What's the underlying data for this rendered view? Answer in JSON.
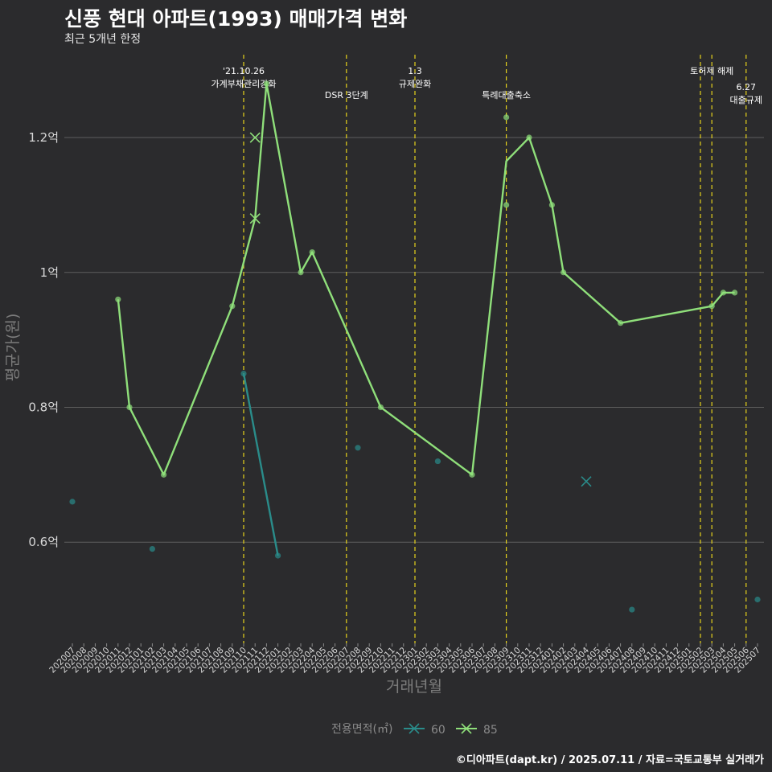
{
  "title": "신풍 현대 아파트(1993) 매매가격 변화",
  "subtitle": "최근 5개년 한정",
  "credit": "©디아파트(dapt.kr) / 2025.07.11 / 자료=국토교통부 실거래가",
  "colors": {
    "s60": "#2a8c8a",
    "s85": "#8fdf7a",
    "event": "#e6d21c",
    "grid": "#5e5e5e"
  },
  "chart_data": {
    "type": "line",
    "title": "신풍 현대 아파트(1993) 매매가격 변화",
    "xlabel": "거래년월",
    "ylabel": "평균가(원)",
    "ylim": [
      0.45,
      1.33
    ],
    "yticks": [
      0.6,
      0.8,
      1.0,
      1.2
    ],
    "ytick_labels": [
      "0.6억",
      "0.8억",
      "1억",
      "1.2억"
    ],
    "categories": [
      "202007",
      "202008",
      "202009",
      "202010",
      "202011",
      "202012",
      "202101",
      "202102",
      "202103",
      "202104",
      "202105",
      "202106",
      "202107",
      "202108",
      "202109",
      "202110",
      "202111",
      "202112",
      "202201",
      "202202",
      "202203",
      "202204",
      "202205",
      "202206",
      "202207",
      "202208",
      "202209",
      "202210",
      "202211",
      "202212",
      "202301",
      "202302",
      "202303",
      "202304",
      "202305",
      "202306",
      "202307",
      "202308",
      "202309",
      "202310",
      "202311",
      "202312",
      "202401",
      "202402",
      "202403",
      "202404",
      "202405",
      "202406",
      "202407",
      "202408",
      "202409",
      "202410",
      "202411",
      "202412",
      "202501",
      "202502",
      "202503",
      "202504",
      "202505",
      "202506",
      "202507"
    ],
    "legend_title": "전용면적(㎡)",
    "series": [
      {
        "name": "60",
        "line": [
          [
            "202110",
            0.85
          ],
          [
            "202201",
            0.58
          ]
        ],
        "points": [
          [
            "202007",
            0.66
          ],
          [
            "202102",
            0.59
          ],
          [
            "202110",
            0.85
          ],
          [
            "202201",
            0.58
          ],
          [
            "202208",
            0.74
          ],
          [
            "202303",
            0.72
          ],
          [
            "202408",
            0.5
          ],
          [
            "202507",
            0.515
          ]
        ],
        "cross": [
          [
            "202404",
            0.69
          ]
        ]
      },
      {
        "name": "85",
        "line": [
          [
            "202011",
            0.96
          ],
          [
            "202012",
            0.8
          ],
          [
            "202103",
            0.7
          ],
          [
            "202109",
            0.95
          ],
          [
            "202111",
            1.08
          ],
          [
            "202112",
            1.28
          ],
          [
            "202203",
            1.0
          ],
          [
            "202204",
            1.03
          ],
          [
            "202210",
            0.8
          ],
          [
            "202306",
            0.7
          ],
          [
            "202309",
            1.165
          ],
          [
            "202311",
            1.2
          ],
          [
            "202401",
            1.1
          ],
          [
            "202402",
            1.0
          ],
          [
            "202407",
            0.925
          ],
          [
            "202503",
            0.95
          ],
          [
            "202504",
            0.97
          ],
          [
            "202505",
            0.97
          ]
        ],
        "points": [
          [
            "202011",
            0.96
          ],
          [
            "202012",
            0.8
          ],
          [
            "202103",
            0.7
          ],
          [
            "202109",
            0.95
          ],
          [
            "202112",
            1.28
          ],
          [
            "202203",
            1.0
          ],
          [
            "202204",
            1.03
          ],
          [
            "202210",
            0.8
          ],
          [
            "202306",
            0.7
          ],
          [
            "202309",
            1.23
          ],
          [
            "202309",
            1.1
          ],
          [
            "202311",
            1.2
          ],
          [
            "202401",
            1.1
          ],
          [
            "202402",
            1.0
          ],
          [
            "202407",
            0.925
          ],
          [
            "202503",
            0.95
          ],
          [
            "202504",
            0.97
          ],
          [
            "202505",
            0.97
          ]
        ],
        "cross": [
          [
            "202111",
            1.2
          ],
          [
            "202111",
            1.08
          ]
        ]
      }
    ],
    "events": [
      {
        "x": "202110",
        "lines": [
          "'21.10.26",
          "가계부채관리강화"
        ],
        "row": 0
      },
      {
        "x": "202207",
        "lines": [
          "DSR 3단계"
        ],
        "row": 1
      },
      {
        "x": "202301",
        "lines": [
          "1.3",
          "규제완화"
        ],
        "row": 0
      },
      {
        "x": "202309",
        "lines": [
          "특례대출축소"
        ],
        "row": 1
      },
      {
        "x": "202502",
        "lines": [],
        "row": 0
      },
      {
        "x": "202503",
        "lines": [
          "토허제 해제"
        ],
        "row": 0
      },
      {
        "x": "202506",
        "lines": [
          "6.27",
          "대출규제"
        ],
        "row": 2
      }
    ]
  }
}
